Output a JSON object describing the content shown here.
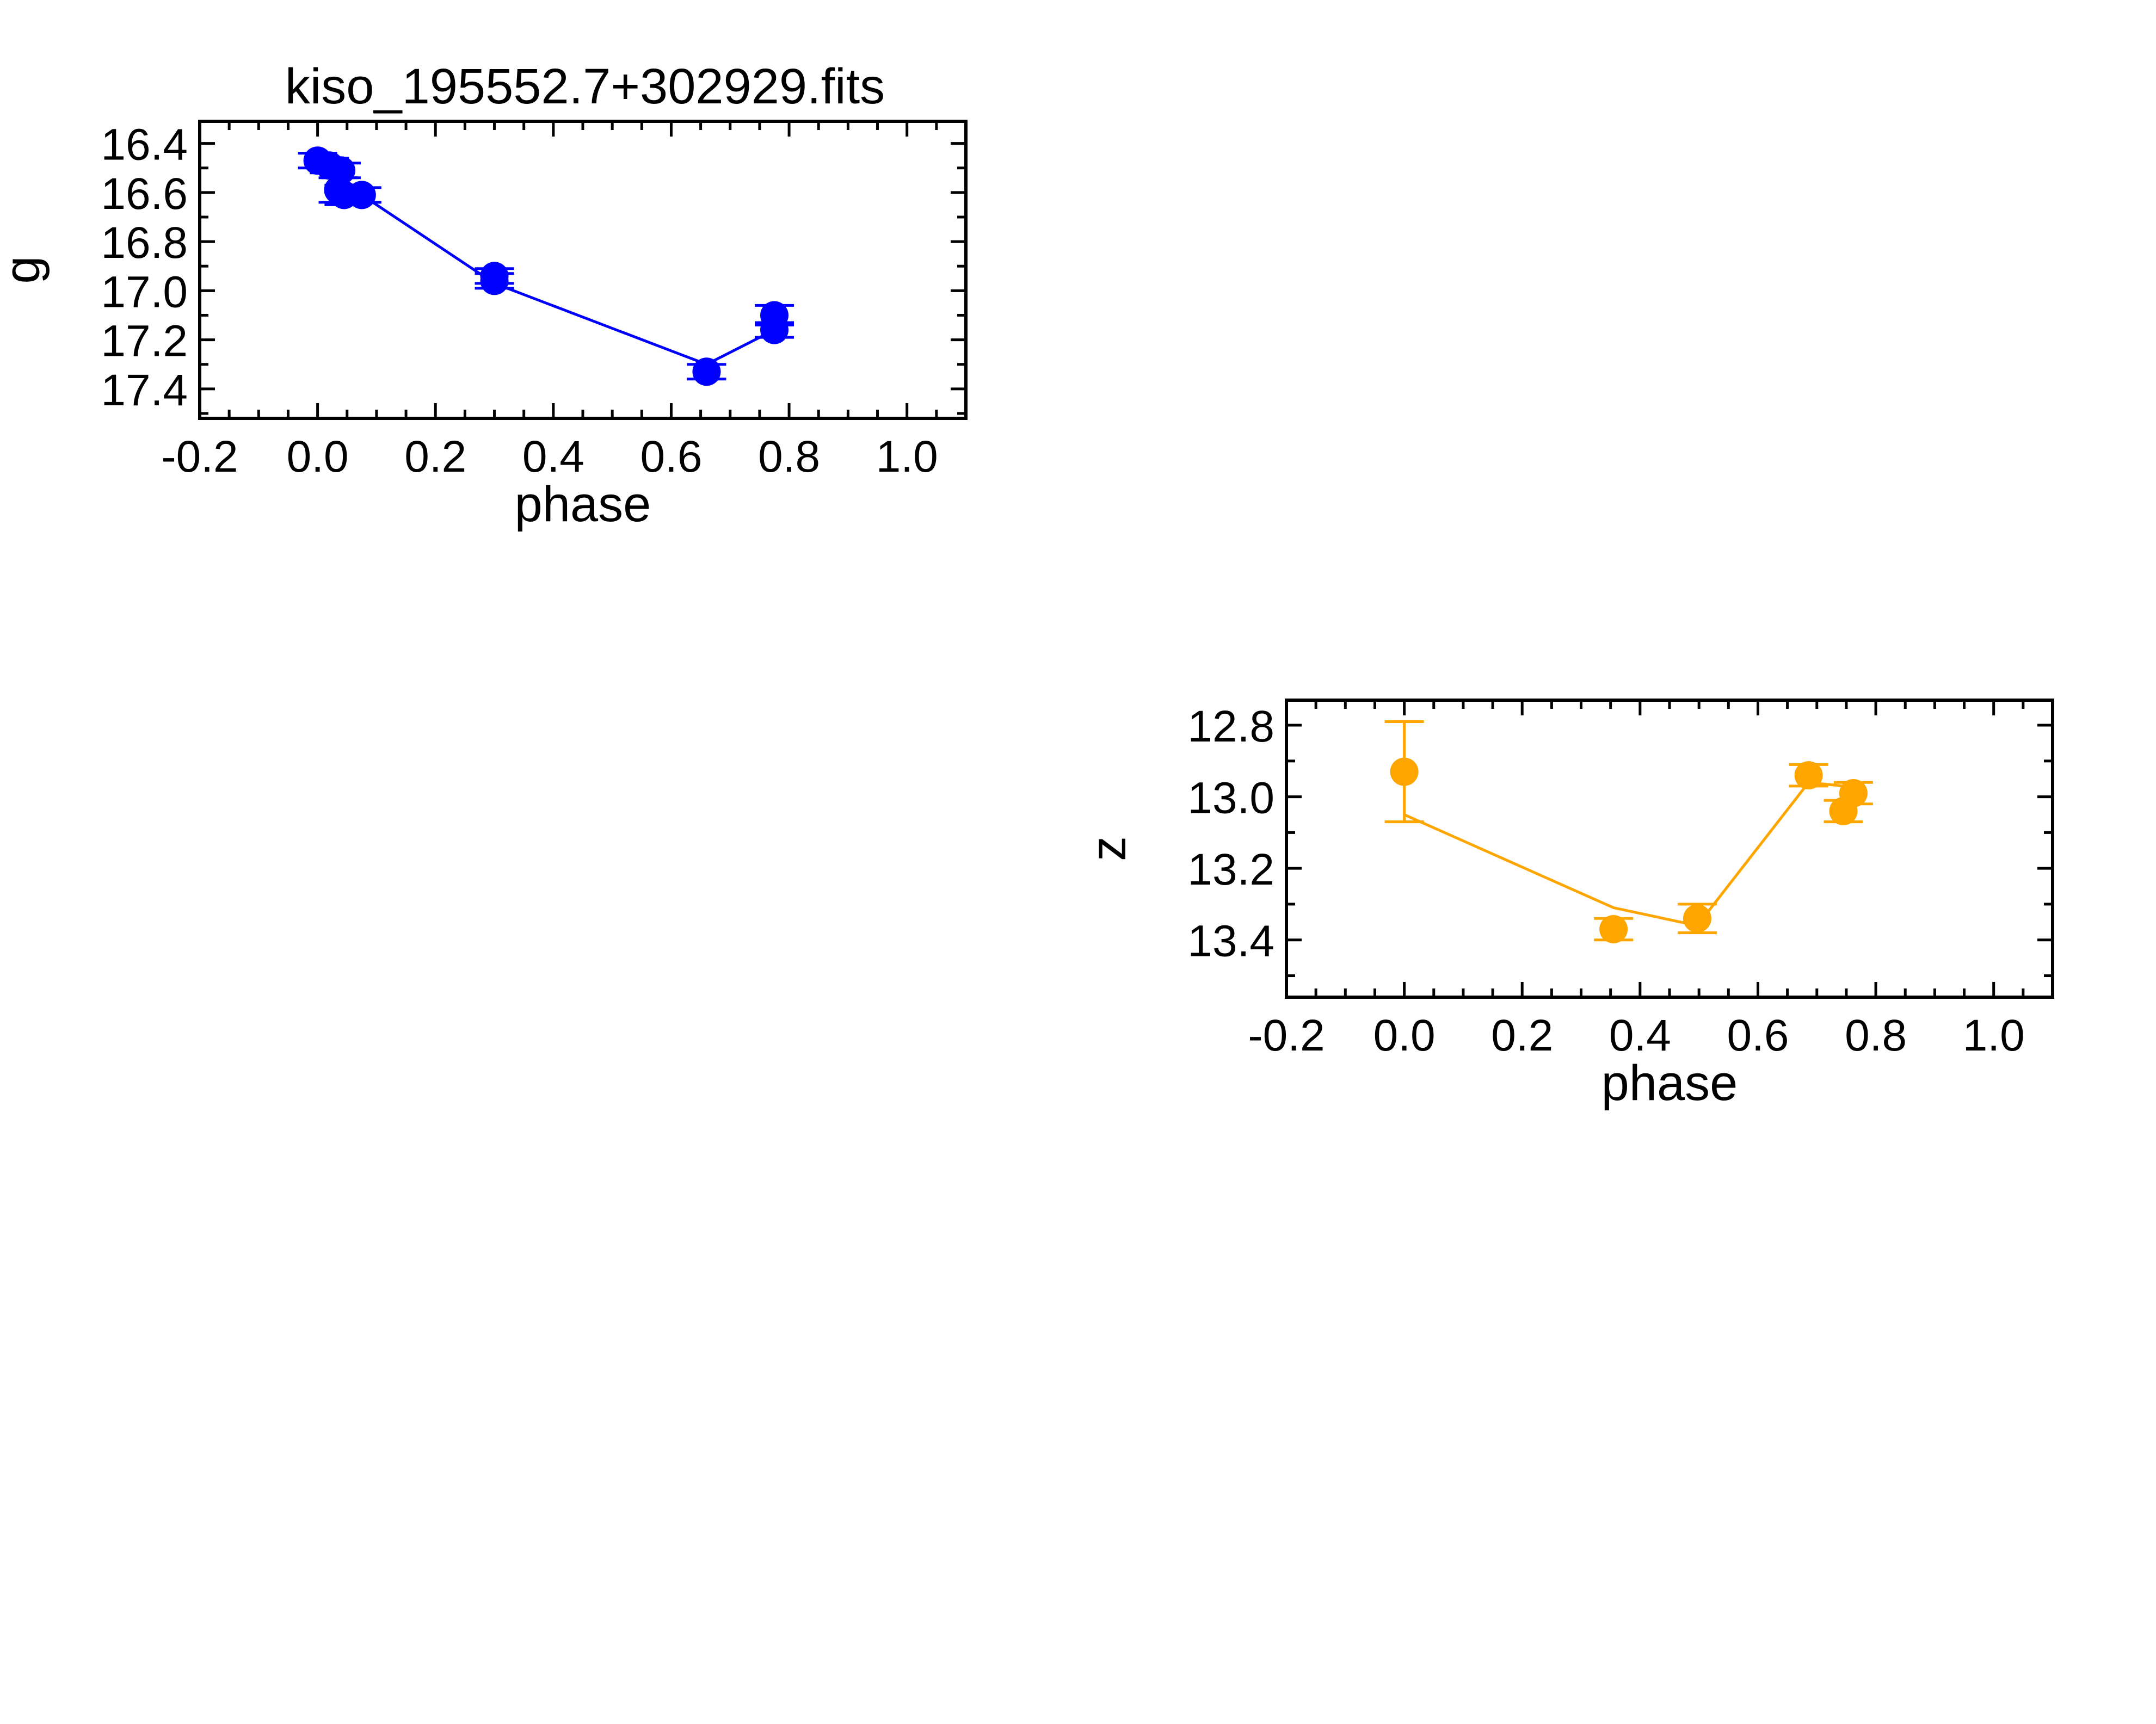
{
  "chart_data": [
    {
      "type": "scatter",
      "title": "kiso_195552.7+302929.fits",
      "xlabel": "phase",
      "ylabel": "g",
      "xlim": [
        -0.2,
        1.1
      ],
      "ylim": [
        17.52,
        16.31
      ],
      "y_inverted": true,
      "xticks": [
        "-0.2",
        "0.0",
        "0.2",
        "0.4",
        "0.6",
        "0.8",
        "1.0"
      ],
      "yticks": [
        "16.4",
        "16.6",
        "16.8",
        "17.0",
        "17.2",
        "17.4"
      ],
      "color": "#0000ff",
      "series": [
        {
          "points": [
            {
              "x": 0.0,
              "y": 16.47,
              "err": 0.03
            },
            {
              "x": 0.02,
              "y": 16.49,
              "err": 0.03
            },
            {
              "x": 0.04,
              "y": 16.51,
              "err": 0.03
            },
            {
              "x": 0.035,
              "y": 16.59,
              "err": 0.05
            },
            {
              "x": 0.045,
              "y": 16.61,
              "err": 0.04
            },
            {
              "x": 0.075,
              "y": 16.61,
              "err": 0.03
            },
            {
              "x": 0.3,
              "y": 16.94,
              "err": 0.03
            },
            {
              "x": 0.3,
              "y": 16.96,
              "err": 0.03
            },
            {
              "x": 0.66,
              "y": 17.33,
              "err": 0.03
            },
            {
              "x": 0.775,
              "y": 17.1,
              "err": 0.04
            },
            {
              "x": 0.775,
              "y": 17.16,
              "err": 0.03
            }
          ],
          "line": [
            {
              "x": 0.0,
              "y": 16.47
            },
            {
              "x": 0.02,
              "y": 16.49
            },
            {
              "x": 0.04,
              "y": 16.51
            },
            {
              "x": 0.04,
              "y": 16.6
            },
            {
              "x": 0.075,
              "y": 16.61
            },
            {
              "x": 0.3,
              "y": 16.97
            },
            {
              "x": 0.66,
              "y": 17.3
            },
            {
              "x": 0.775,
              "y": 17.16
            }
          ]
        }
      ]
    },
    {
      "type": "scatter",
      "title": "",
      "xlabel": "phase",
      "ylabel": "z",
      "xlim": [
        -0.2,
        1.1
      ],
      "ylim": [
        13.56,
        12.73
      ],
      "y_inverted": true,
      "xticks": [
        "-0.2",
        "0.0",
        "0.2",
        "0.4",
        "0.6",
        "0.8",
        "1.0"
      ],
      "yticks": [
        "12.8",
        "13.0",
        "13.2",
        "13.4"
      ],
      "color": "#ffa500",
      "series": [
        {
          "points": [
            {
              "x": 0.0,
              "y": 12.93,
              "err": 0.14
            },
            {
              "x": 0.355,
              "y": 13.37,
              "err": 0.03
            },
            {
              "x": 0.497,
              "y": 13.34,
              "err": 0.04
            },
            {
              "x": 0.686,
              "y": 12.94,
              "err": 0.03
            },
            {
              "x": 0.745,
              "y": 13.04,
              "err": 0.03
            },
            {
              "x": 0.762,
              "y": 12.99,
              "err": 0.03
            }
          ],
          "line": [
            {
              "x": 0.0,
              "y": 13.05
            },
            {
              "x": 0.355,
              "y": 13.31
            },
            {
              "x": 0.497,
              "y": 13.36
            },
            {
              "x": 0.686,
              "y": 12.96
            },
            {
              "x": 0.745,
              "y": 12.97
            },
            {
              "x": 0.762,
              "y": 12.98
            }
          ]
        }
      ]
    }
  ]
}
